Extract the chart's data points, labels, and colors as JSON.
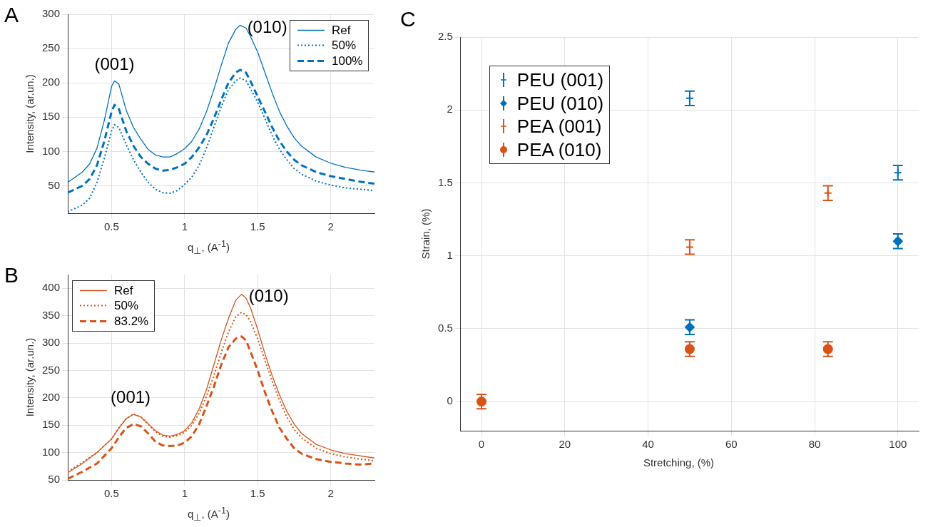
{
  "chart_data": [
    {
      "type": "line",
      "title": "A",
      "xlabel": "q$_{⊥}$, (A$^{-1}$)",
      "ylabel": "Intensity, (ar.un.)",
      "xlim": [
        0.2,
        2.3
      ],
      "xticks": [
        0.5,
        1,
        1.5,
        2
      ],
      "ylim": [
        10,
        300
      ],
      "yticks": [
        50,
        100,
        150,
        200,
        250,
        300
      ],
      "grid": true,
      "legend": "top right",
      "x": [
        0.2,
        0.3,
        0.35,
        0.4,
        0.45,
        0.5,
        0.52,
        0.55,
        0.6,
        0.65,
        0.7,
        0.75,
        0.8,
        0.85,
        0.9,
        0.95,
        1.0,
        1.05,
        1.1,
        1.15,
        1.2,
        1.25,
        1.3,
        1.35,
        1.38,
        1.42,
        1.45,
        1.5,
        1.55,
        1.6,
        1.65,
        1.7,
        1.75,
        1.8,
        1.9,
        2.0,
        2.1,
        2.2,
        2.3
      ],
      "series": [
        {
          "name": "Ref",
          "color": "#0072bd",
          "line_style": "solid",
          "values": [
            55,
            70,
            82,
            105,
            145,
            195,
            203,
            198,
            160,
            135,
            118,
            103,
            95,
            92,
            92,
            97,
            104,
            115,
            133,
            158,
            190,
            225,
            258,
            278,
            284,
            280,
            268,
            245,
            215,
            185,
            158,
            137,
            120,
            108,
            92,
            83,
            77,
            73,
            70
          ]
        },
        {
          "name": "50%",
          "color": "#0072bd",
          "line_style": "dotted",
          "values": [
            12,
            22,
            32,
            55,
            90,
            130,
            139,
            135,
            110,
            88,
            70,
            55,
            45,
            40,
            39,
            43,
            52,
            63,
            80,
            105,
            135,
            165,
            190,
            203,
            207,
            203,
            192,
            172,
            148,
            123,
            103,
            88,
            75,
            67,
            57,
            51,
            47,
            45,
            43
          ]
        },
        {
          "name": "100%",
          "color": "#0072bd",
          "line_style": "dashed",
          "values": [
            40,
            50,
            60,
            80,
            115,
            158,
            168,
            162,
            130,
            108,
            92,
            82,
            75,
            72,
            73,
            77,
            82,
            92,
            106,
            124,
            148,
            175,
            200,
            215,
            219,
            215,
            203,
            180,
            158,
            135,
            115,
            100,
            88,
            80,
            70,
            64,
            60,
            56,
            53
          ]
        }
      ],
      "annotations": [
        {
          "text": "(001)",
          "x": 0.52,
          "y": 203
        },
        {
          "text": "(010)",
          "x": 1.38,
          "y": 284
        }
      ]
    },
    {
      "type": "line",
      "title": "B",
      "xlabel": "q$_{⊥}$, (A$^{-1}$)",
      "ylabel": "Intensity, (ar.un.)",
      "xlim": [
        0.2,
        2.3
      ],
      "xticks": [
        0.5,
        1,
        1.5,
        2
      ],
      "ylim": [
        50,
        425
      ],
      "yticks": [
        50,
        100,
        150,
        200,
        250,
        300,
        350,
        400
      ],
      "grid": true,
      "legend": "top left",
      "x": [
        0.2,
        0.3,
        0.4,
        0.5,
        0.55,
        0.6,
        0.65,
        0.7,
        0.75,
        0.8,
        0.85,
        0.9,
        0.95,
        1.0,
        1.05,
        1.1,
        1.15,
        1.2,
        1.25,
        1.3,
        1.35,
        1.39,
        1.42,
        1.45,
        1.5,
        1.55,
        1.6,
        1.65,
        1.7,
        1.75,
        1.8,
        1.9,
        2.0,
        2.1,
        2.2,
        2.3
      ],
      "series": [
        {
          "name": "Ref",
          "color": "#d95319",
          "line_style": "solid",
          "values": [
            63,
            80,
            100,
            125,
            145,
            162,
            170,
            165,
            153,
            140,
            132,
            130,
            133,
            140,
            155,
            180,
            215,
            260,
            305,
            345,
            378,
            389,
            382,
            365,
            325,
            280,
            240,
            205,
            175,
            152,
            135,
            115,
            105,
            98,
            94,
            90
          ]
        },
        {
          "name": "50%",
          "color": "#d95319",
          "line_style": "dotted",
          "values": [
            65,
            82,
            100,
            125,
            145,
            162,
            170,
            165,
            152,
            138,
            130,
            128,
            131,
            137,
            150,
            172,
            203,
            240,
            282,
            320,
            348,
            356,
            352,
            340,
            308,
            268,
            230,
            195,
            165,
            142,
            127,
            108,
            98,
            92,
            88,
            85
          ]
        },
        {
          "name": "83.2%",
          "color": "#d95319",
          "line_style": "dashed",
          "values": [
            52,
            65,
            80,
            108,
            128,
            145,
            152,
            148,
            135,
            120,
            113,
            112,
            113,
            118,
            130,
            152,
            185,
            220,
            260,
            292,
            308,
            312,
            305,
            285,
            250,
            210,
            175,
            145,
            125,
            108,
            98,
            88,
            83,
            80,
            78,
            80
          ]
        }
      ],
      "annotations": [
        {
          "text": "(001)",
          "x": 0.63,
          "y": 170
        },
        {
          "text": "(010)",
          "x": 1.39,
          "y": 389
        }
      ]
    },
    {
      "type": "scatter",
      "title": "C",
      "xlabel": "Stretching, (%)",
      "ylabel": "Strain, (%)",
      "xlim": [
        -5,
        105
      ],
      "xticks": [
        0,
        20,
        40,
        60,
        80,
        100
      ],
      "ylim": [
        -0.2,
        2.5
      ],
      "yticks": [
        0,
        0.5,
        1,
        1.5,
        2,
        2.5
      ],
      "grid": true,
      "legend": "top left",
      "series": [
        {
          "name": "PEU (001)",
          "color": "#0072bd",
          "marker": "cross",
          "x": [
            50,
            100
          ],
          "values": [
            2.08,
            1.57
          ],
          "errors": [
            0.05,
            0.05
          ]
        },
        {
          "name": "PEU (010)",
          "color": "#0072bd",
          "marker": "diamond",
          "x": [
            50,
            100
          ],
          "values": [
            0.51,
            1.1
          ],
          "errors": [
            0.05,
            0.05
          ]
        },
        {
          "name": "PEA (001)",
          "color": "#d95319",
          "marker": "cross",
          "x": [
            50,
            83.2
          ],
          "values": [
            1.06,
            1.43
          ],
          "errors": [
            0.05,
            0.05
          ]
        },
        {
          "name": "PEA (010)",
          "color": "#d95319",
          "marker": "circle",
          "x": [
            0,
            50,
            83.2
          ],
          "values": [
            0,
            0.36,
            0.36
          ],
          "errors": [
            0.05,
            0.05,
            0.05
          ]
        }
      ]
    }
  ]
}
